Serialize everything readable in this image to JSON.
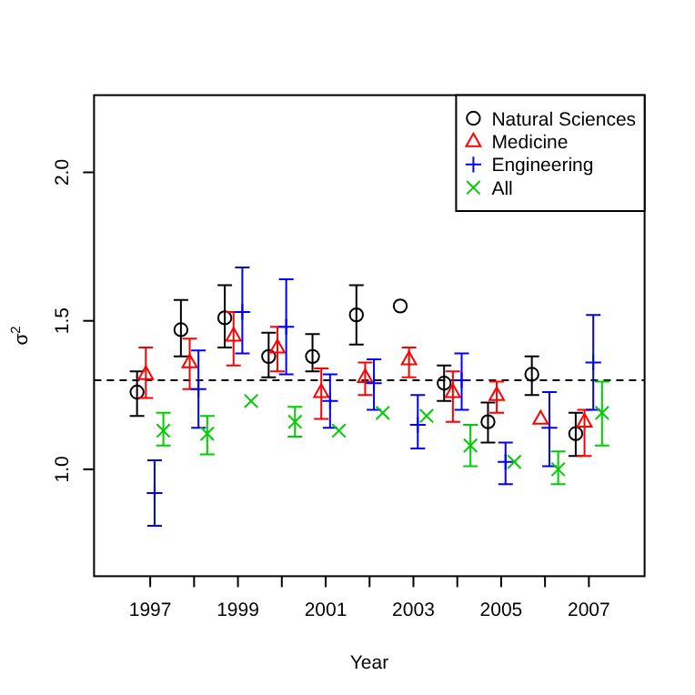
{
  "chart_data": {
    "type": "scatter",
    "xlabel": "Year",
    "ylabel": "σ$^{2}$",
    "xlim": [
      1995.72,
      2008.27
    ],
    "ylim": [
      0.64,
      2.26
    ],
    "xticks": [
      1997,
      {
        "value": 1998,
        "label": null
      },
      1999,
      {
        "value": 2000,
        "label": null
      },
      2001,
      {
        "value": 2002,
        "label": null
      },
      2003,
      {
        "value": 2004,
        "label": null
      },
      2005,
      {
        "value": 2006,
        "label": null
      },
      2007
    ],
    "yticks": [
      {
        "value": 1.0,
        "label": "1.0"
      },
      1.5,
      {
        "value": 2.0,
        "label": "2.0"
      }
    ],
    "legend": "top right",
    "grid": false,
    "ref_lines": [
      {
        "axis": "y",
        "value": 1.3,
        "line_style": "dashed",
        "color": "#000000"
      }
    ],
    "series": [
      {
        "name": "Natural Sciences",
        "color": "#000000",
        "marker": "circle",
        "x": [
          1996.7,
          1997.7,
          1998.7,
          1999.7,
          2000.7,
          2001.7,
          2002.7,
          2003.7,
          2004.7,
          2005.7,
          2006.7
        ],
        "values": [
          1.26,
          1.47,
          1.51,
          1.38,
          1.38,
          1.52,
          1.55,
          1.29,
          1.16,
          1.32,
          1.12
        ],
        "errors": [
          [
            1.18,
            1.33
          ],
          [
            1.38,
            1.57
          ],
          [
            1.41,
            1.62
          ],
          [
            1.31,
            1.46
          ],
          [
            1.33,
            1.455
          ],
          [
            1.42,
            1.62
          ],
          null,
          [
            1.23,
            1.35
          ],
          [
            1.09,
            1.225
          ],
          [
            1.25,
            1.38
          ],
          [
            1.045,
            1.19
          ]
        ]
      },
      {
        "name": "Medicine",
        "color": "#ff0000",
        "marker": "triangle",
        "x": [
          1996.9,
          1997.9,
          1998.9,
          1999.9,
          2000.9,
          2001.9,
          2002.9,
          2003.9,
          2004.9,
          2005.9,
          2006.9
        ],
        "values": [
          1.32,
          1.36,
          1.45,
          1.41,
          1.26,
          1.31,
          1.37,
          1.26,
          1.25,
          1.17,
          1.16
        ],
        "errors": [
          [
            1.24,
            1.41
          ],
          [
            1.27,
            1.44
          ],
          [
            1.35,
            1.53
          ],
          [
            1.33,
            1.48
          ],
          [
            1.17,
            1.34
          ],
          [
            1.25,
            1.36
          ],
          [
            1.31,
            1.41
          ],
          [
            1.16,
            1.33
          ],
          [
            1.19,
            1.295
          ],
          null,
          [
            1.045,
            1.2
          ]
        ]
      },
      {
        "name": "Engineering",
        "color": "#0000ff",
        "marker": "plus",
        "x": [
          1997.1,
          1998.1,
          1999.1,
          2000.1,
          2001.1,
          2002.1,
          2003.1,
          2004.1,
          2005.1,
          2006.1,
          2007.1
        ],
        "values": [
          0.92,
          1.27,
          1.53,
          1.48,
          1.23,
          1.29,
          1.15,
          1.3,
          1.025,
          1.14,
          1.36
        ],
        "errors": [
          [
            0.81,
            1.03
          ],
          [
            1.14,
            1.4
          ],
          [
            1.39,
            1.68
          ],
          [
            1.32,
            1.64
          ],
          [
            1.14,
            1.32
          ],
          [
            1.2,
            1.37
          ],
          [
            1.07,
            1.25
          ],
          [
            1.2,
            1.39
          ],
          [
            0.95,
            1.09
          ],
          [
            1.01,
            1.26
          ],
          [
            1.2,
            1.52
          ]
        ]
      },
      {
        "name": "All",
        "color": "#00cd00",
        "marker": "cross",
        "x": [
          1997.3,
          1998.3,
          1999.3,
          2000.3,
          2001.3,
          2002.3,
          2003.3,
          2004.3,
          2005.3,
          2006.3,
          2007.3
        ],
        "values": [
          1.13,
          1.12,
          1.23,
          1.16,
          1.13,
          1.19,
          1.18,
          1.08,
          1.025,
          1.0,
          1.19
        ],
        "errors": [
          [
            1.08,
            1.19
          ],
          [
            1.05,
            1.18
          ],
          null,
          [
            1.11,
            1.21
          ],
          null,
          null,
          null,
          [
            1.01,
            1.15
          ],
          null,
          [
            0.95,
            1.06
          ],
          [
            1.08,
            1.295
          ]
        ]
      }
    ]
  }
}
